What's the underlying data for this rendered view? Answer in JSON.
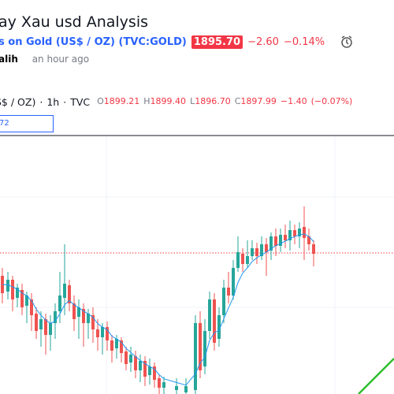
{
  "header": {
    "title": "ay Xau usd Analysis",
    "symbol": "s on Gold (US$ / OZ) (TVC:GOLD)",
    "price": "1895.70",
    "change": "−2.60",
    "change_percent": "−0.14%",
    "author": "alih",
    "time": "an hour ago"
  },
  "chart_header": {
    "symbol": "S$ / OZ)",
    "separator": "·",
    "interval": "1h",
    "source": "TVC",
    "o_label": "O",
    "open": "1899.21",
    "h_label": "H",
    "high": "1899.40",
    "l_label": "L",
    "low": "1896.70",
    "c_label": "C",
    "close": "1897.99",
    "change": "−1.40",
    "change_percent": "(−0.07%)"
  },
  "indicator_input": "72"
}
